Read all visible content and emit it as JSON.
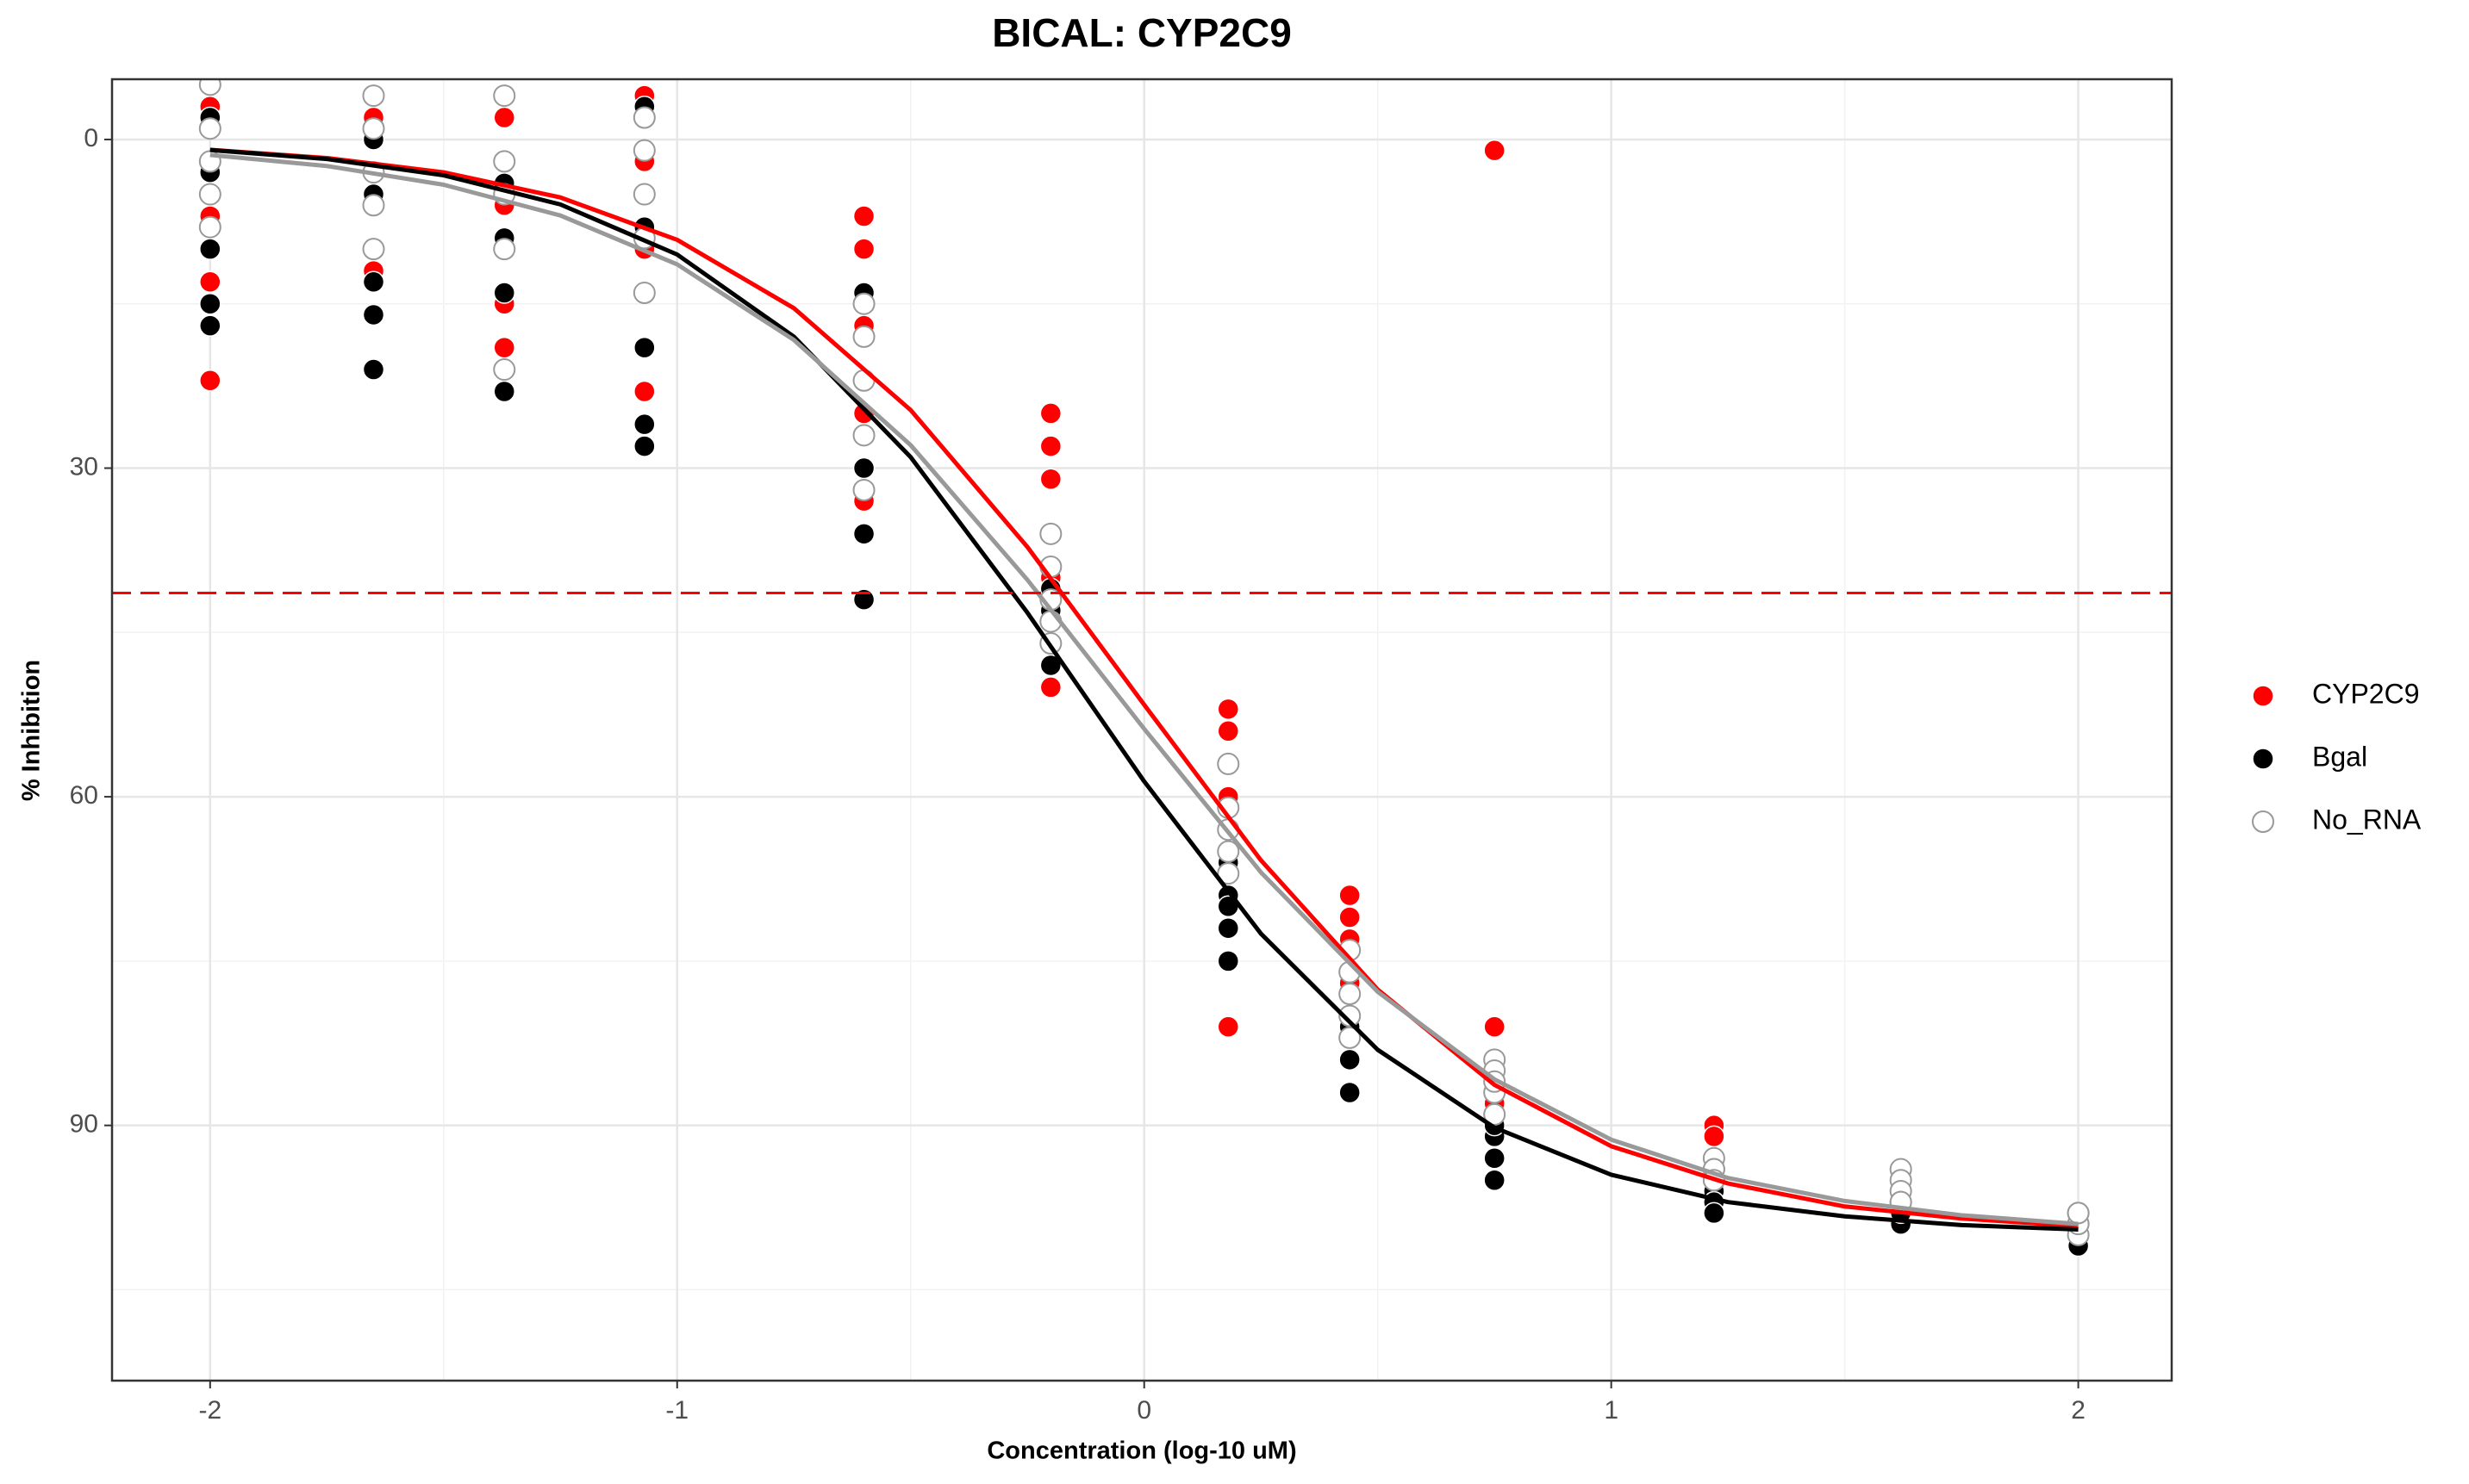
{
  "chart_data": {
    "type": "scatter",
    "title": "BICAL: CYP2C9",
    "x_label": "Concentration (log-10 uM)",
    "y_label": "% Inhibition",
    "xlim": [
      -2.21,
      2.2
    ],
    "ylim": [
      -5.5,
      113.3
    ],
    "y_reversed": true,
    "xticks": [
      -2,
      -1,
      0,
      1,
      2
    ],
    "yticks": [
      0,
      30,
      60,
      90
    ],
    "grid": true,
    "legend": "right",
    "reference_line": {
      "value": 41.4,
      "color": "#ff0000"
    },
    "x": [
      -2,
      -2,
      -2,
      -2,
      -2,
      -1.65,
      -1.65,
      -1.65,
      -1.65,
      -1.65,
      -1.37,
      -1.37,
      -1.37,
      -1.37,
      -1.37,
      -1.07,
      -1.07,
      -1.07,
      -1.07,
      -1.07,
      -0.6,
      -0.6,
      -0.6,
      -0.6,
      -0.6,
      -0.2,
      -0.2,
      -0.2,
      -0.2,
      -0.2,
      0.18,
      0.18,
      0.18,
      0.18,
      0.18,
      0.44,
      0.44,
      0.44,
      0.44,
      0.44,
      0.75,
      0.75,
      0.75,
      0.75,
      0.75,
      1.22,
      1.22,
      1.22,
      1.22,
      1.22,
      1.62,
      1.62,
      1.62,
      1.62,
      1.62,
      2,
      2,
      2,
      2,
      2
    ],
    "fit_x": [
      -2,
      -1.75,
      -1.5,
      -1.25,
      -1,
      -0.75,
      -0.5,
      -0.25,
      0,
      0.25,
      0.5,
      0.75,
      1,
      1.25,
      1.5,
      1.75,
      2
    ],
    "series": [
      {
        "name": "CYP2C9",
        "color": "#ff0000",
        "marker": "filled",
        "values": [
          22,
          13,
          7,
          3,
          -3,
          12,
          5,
          0,
          -4,
          -2,
          19,
          15,
          6,
          2,
          -2,
          26,
          23,
          10,
          2,
          -4,
          33,
          25,
          17,
          10,
          7,
          25,
          28,
          31,
          40,
          50,
          52,
          54,
          60,
          66,
          81,
          69,
          71,
          73,
          77,
          80,
          1,
          81,
          84,
          86,
          88,
          90,
          91,
          93,
          95,
          96,
          95,
          97,
          98,
          99,
          98,
          98,
          99,
          100,
          99,
          99
        ],
        "fit_values": [
          0.94,
          1.69,
          3.0,
          5.29,
          9.16,
          15.4,
          24.7,
          37.2,
          51.6,
          65.8,
          77.6,
          86.3,
          91.9,
          95.3,
          97.4,
          98.5,
          99.2
        ]
      },
      {
        "name": "Bgal",
        "color": "#000000",
        "marker": "filled",
        "values": [
          17,
          15,
          10,
          3,
          -2,
          21,
          16,
          13,
          5,
          0,
          23,
          14,
          9,
          4,
          -4,
          28,
          26,
          19,
          8,
          -3,
          42,
          36,
          30,
          22,
          14,
          43,
          46,
          48,
          44,
          41,
          66,
          69,
          72,
          75,
          70,
          78,
          81,
          84,
          87,
          80,
          89,
          91,
          93,
          95,
          90,
          94,
          96,
          97,
          98,
          95,
          97,
          98,
          99,
          98,
          97,
          99,
          100,
          101,
          100,
          99
        ],
        "fit_values": [
          0.96,
          1.78,
          3.27,
          5.93,
          10.5,
          18.0,
          29.0,
          43.2,
          58.6,
          72.5,
          83.1,
          90.2,
          94.5,
          97.0,
          98.3,
          99.1,
          99.5
        ]
      },
      {
        "name": "No_RNA",
        "color": "#999999",
        "marker": "open",
        "values": [
          8,
          5,
          2,
          -1,
          -5,
          10,
          6,
          3,
          -1,
          -4,
          21,
          10,
          5,
          2,
          -4,
          14,
          9,
          5,
          1,
          -2,
          32,
          27,
          22,
          18,
          15,
          36,
          39,
          42,
          44,
          46,
          57,
          61,
          63,
          65,
          67,
          74,
          76,
          78,
          80,
          82,
          84,
          85,
          87,
          89,
          86,
          93,
          94,
          95,
          94,
          95,
          94,
          95,
          96,
          97,
          97,
          98,
          99,
          100,
          99,
          98
        ],
        "fit_values": [
          1.41,
          2.42,
          4.13,
          6.94,
          11.4,
          18.3,
          27.9,
          40.2,
          53.8,
          66.9,
          77.8,
          85.8,
          91.3,
          94.8,
          96.9,
          98.2,
          99.0
        ]
      }
    ]
  }
}
